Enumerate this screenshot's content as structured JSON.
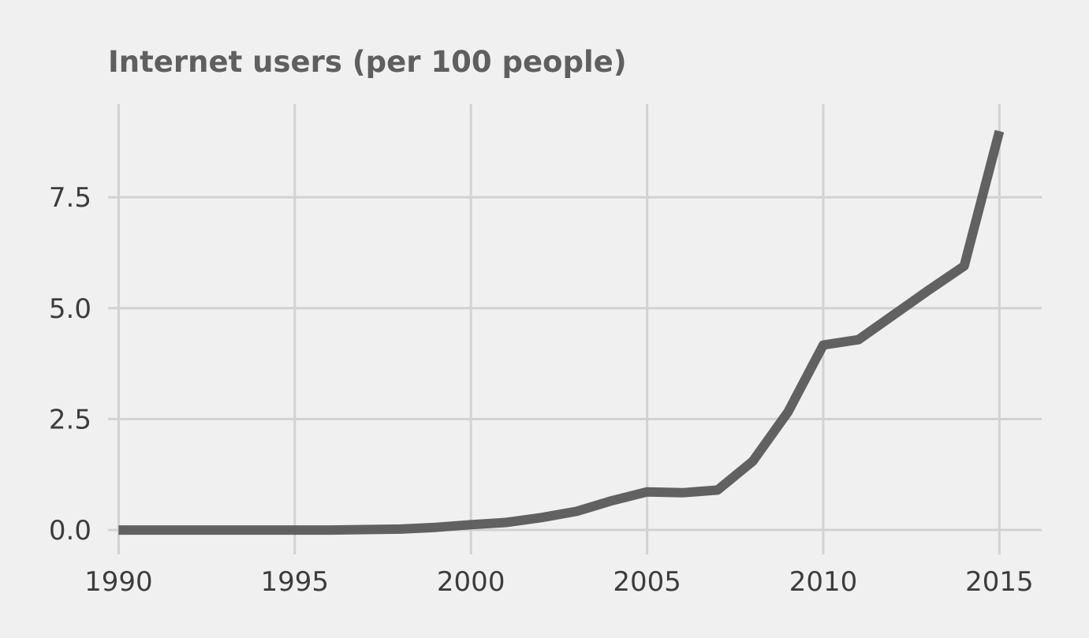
{
  "chart_data": {
    "type": "line",
    "title": "Internet users (per 100 people)",
    "xlabel": "",
    "ylabel": "",
    "xlim": [
      1989.7,
      2016.2
    ],
    "ylim": [
      -0.55,
      9.6
    ],
    "x_ticks": [
      1990,
      1995,
      2000,
      2005,
      2010,
      2015
    ],
    "x_tick_labels": [
      "1990",
      "1995",
      "2000",
      "2005",
      "2010",
      "2015"
    ],
    "y_ticks": [
      0,
      2.5,
      5,
      7.5
    ],
    "y_tick_labels": [
      "0.0",
      "2.5",
      "5.0",
      "7.5"
    ],
    "grid": true,
    "legend": "none",
    "colors": {
      "background": "#f0f0f0",
      "grid": "#d2d2d2",
      "line": "#555555"
    },
    "series": [
      {
        "x": [
          1990,
          1991,
          1992,
          1993,
          1994,
          1995,
          1996,
          1997,
          1998,
          1999,
          2000,
          2001,
          2002,
          2003,
          2004,
          2005,
          2006,
          2007,
          2008,
          2009,
          2010,
          2011,
          2012,
          2013,
          2014,
          2015
        ],
        "values": [
          0,
          0,
          0,
          0,
          0,
          0,
          0,
          0.01,
          0.02,
          0.06,
          0.12,
          0.17,
          0.28,
          0.42,
          0.66,
          0.86,
          0.84,
          0.9,
          1.55,
          2.66,
          4.17,
          4.29,
          4.85,
          5.41,
          5.95,
          8.99
        ]
      }
    ]
  }
}
